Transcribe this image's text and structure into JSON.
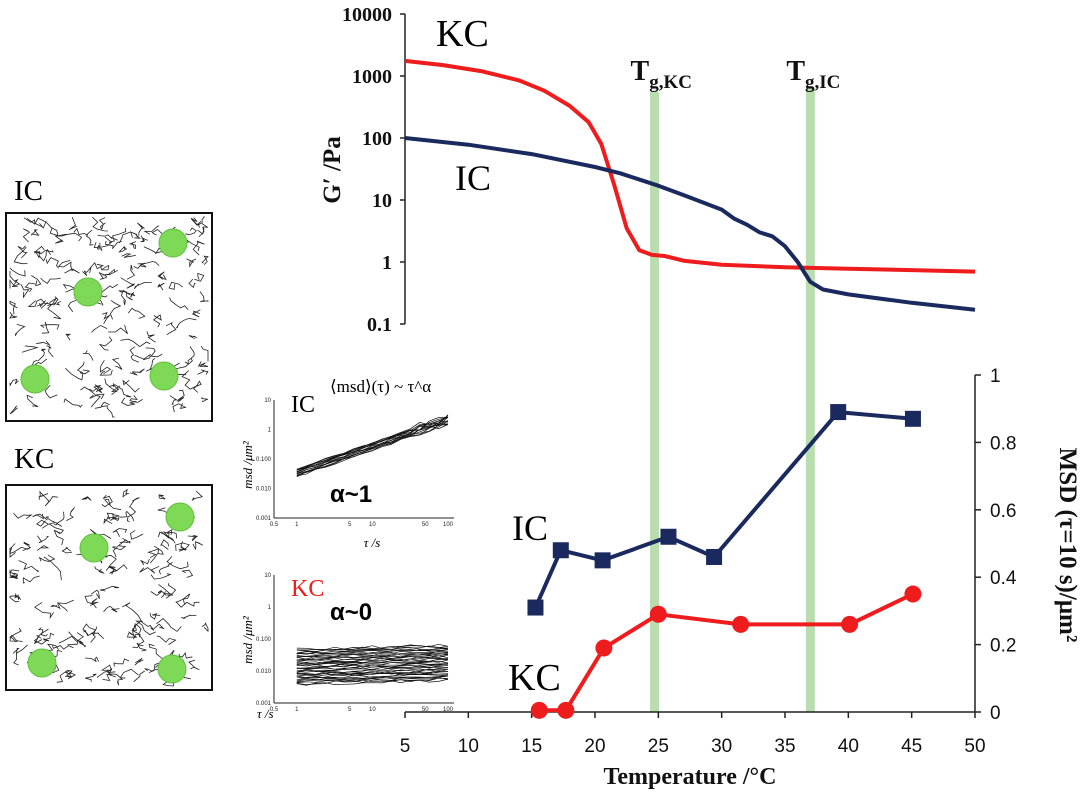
{
  "colors": {
    "ic": "#1b2a5e",
    "kc": "#ee1c1c",
    "band": "#a8d49a",
    "bead": "#7ed957"
  },
  "schematics": {
    "ic_label": "IC",
    "kc_label": "KC"
  },
  "insets": {
    "formula": "⟨msd⟩(τ) ~ τ^α",
    "ic": {
      "label": "IC",
      "alpha": "α~1",
      "ylabel": "msd /μm²",
      "xlabel": "τ /s",
      "yticks": [
        "10",
        "1",
        "0.100",
        "0.010",
        "0.001"
      ],
      "xticks": [
        "0.5",
        "1",
        "5",
        "10",
        "50",
        "100"
      ]
    },
    "kc": {
      "label": "KC",
      "alpha": "α~0",
      "ylabel": "msd /μm²",
      "xlabel": "τ /s",
      "yticks": [
        "10",
        "1",
        "0.100",
        "0.010",
        "0.001"
      ],
      "xticks": [
        "0.5",
        "1",
        "5",
        "10",
        "50",
        "100"
      ]
    }
  },
  "chart_data": [
    {
      "type": "line",
      "ylabel": "G′ /Pa",
      "xlabel": "",
      "xlim": [
        5,
        50
      ],
      "ylim": [
        0.1,
        10000
      ],
      "yscale": "log",
      "yticks": [
        "10000",
        "1000",
        "100",
        "10",
        "1",
        "0.1"
      ],
      "series": [
        {
          "name": "KC",
          "x": [
            5,
            8,
            11,
            14,
            16,
            18,
            19.5,
            20.5,
            21.5,
            22.5,
            23.5,
            24.5,
            25.5,
            27,
            30,
            35,
            40,
            45,
            50
          ],
          "y": [
            1750,
            1500,
            1200,
            850,
            580,
            330,
            180,
            80,
            18,
            3.5,
            1.55,
            1.3,
            1.25,
            1.05,
            0.9,
            0.82,
            0.78,
            0.74,
            0.7
          ]
        },
        {
          "name": "IC",
          "x": [
            5,
            10,
            15,
            20,
            22,
            25,
            27,
            30,
            31,
            32,
            33,
            34,
            35,
            36,
            37,
            38,
            40,
            45,
            50
          ],
          "y": [
            100,
            78,
            55,
            34,
            27,
            17,
            12,
            7,
            5,
            4,
            3,
            2.6,
            1.8,
            1.0,
            0.48,
            0.36,
            0.3,
            0.22,
            0.17
          ]
        }
      ],
      "annotations": [
        {
          "text": "T",
          "sub": "g,KC",
          "x": 24.7
        },
        {
          "text": "T",
          "sub": "g,IC",
          "x": 37
        }
      ]
    },
    {
      "type": "line",
      "xlabel": "Temperature /°C",
      "ylabel": "MSD (τ=10 s)/μm²",
      "xlim": [
        5,
        50
      ],
      "ylim": [
        0,
        1
      ],
      "xticks": [
        "5",
        "10",
        "15",
        "20",
        "25",
        "30",
        "35",
        "40",
        "45",
        "50"
      ],
      "yticks": [
        "0",
        "0.2",
        "0.4",
        "0.6",
        "0.8",
        "1"
      ],
      "series": [
        {
          "name": "IC",
          "marker": "square",
          "x": [
            15.3,
            17.3,
            20.6,
            25.8,
            29.4,
            39.2,
            45.1
          ],
          "y": [
            0.31,
            0.48,
            0.45,
            0.52,
            0.46,
            0.89,
            0.87
          ]
        },
        {
          "name": "KC",
          "marker": "circle",
          "x": [
            15.6,
            17.7,
            20.7,
            25.0,
            31.5,
            40.1,
            45.1
          ],
          "y": [
            0.005,
            0.005,
            0.19,
            0.29,
            0.26,
            0.26,
            0.35
          ]
        }
      ],
      "bands": [
        24.7,
        37
      ]
    }
  ]
}
